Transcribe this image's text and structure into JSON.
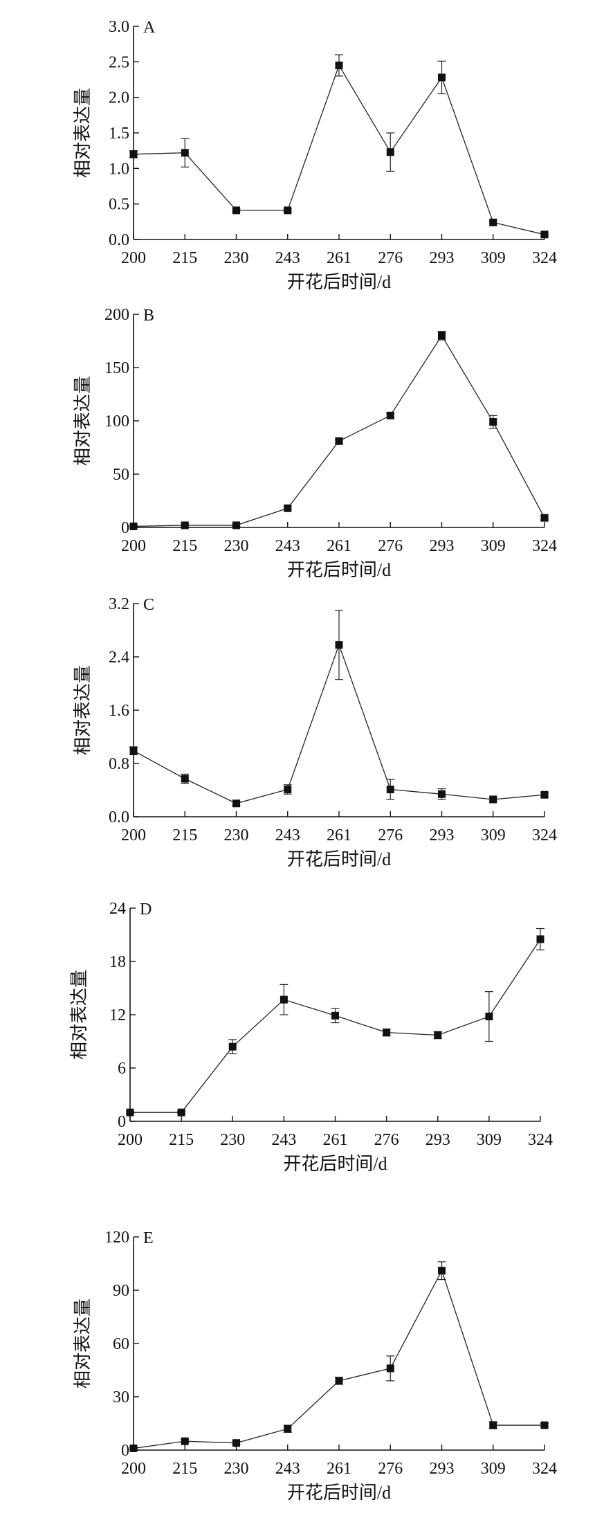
{
  "chart_data": [
    {
      "type": "line",
      "panel_label": "A",
      "xlabel": "开花后时间/d",
      "ylabel": "相对表达量",
      "categories": [
        "200",
        "215",
        "230",
        "243",
        "261",
        "276",
        "293",
        "309",
        "324"
      ],
      "ylim": [
        0,
        3.0
      ],
      "yticks": [
        "0.0",
        "0.5",
        "1.0",
        "1.5",
        "2.0",
        "2.5",
        "3.0"
      ],
      "series": [
        {
          "values": [
            1.2,
            1.22,
            0.41,
            0.41,
            2.45,
            1.23,
            2.28,
            0.24,
            0.07
          ],
          "errors": [
            0.05,
            0.2,
            0.02,
            0.02,
            0.15,
            0.27,
            0.23,
            0.02,
            0.02
          ]
        }
      ]
    },
    {
      "type": "line",
      "panel_label": "B",
      "xlabel": "开花后时间/d",
      "ylabel": "相对表达量",
      "categories": [
        "200",
        "215",
        "230",
        "243",
        "261",
        "276",
        "293",
        "309",
        "324"
      ],
      "ylim": [
        0,
        200
      ],
      "yticks": [
        "0",
        "50",
        "100",
        "150",
        "200"
      ],
      "series": [
        {
          "values": [
            1,
            2,
            2,
            18,
            81,
            105,
            180,
            99,
            9
          ],
          "errors": [
            0.5,
            1.5,
            1,
            1.5,
            2,
            2,
            4,
            6,
            2
          ]
        }
      ]
    },
    {
      "type": "line",
      "panel_label": "C",
      "xlabel": "开花后时间/d",
      "ylabel": "相对表达量",
      "categories": [
        "200",
        "215",
        "230",
        "243",
        "261",
        "276",
        "293",
        "309",
        "324"
      ],
      "ylim": [
        0,
        3.2
      ],
      "yticks": [
        "0.0",
        "0.8",
        "1.6",
        "2.4",
        "3.2"
      ],
      "series": [
        {
          "values": [
            0.99,
            0.57,
            0.2,
            0.41,
            2.58,
            0.41,
            0.34,
            0.26,
            0.33
          ],
          "errors": [
            0.06,
            0.07,
            0.03,
            0.07,
            0.52,
            0.15,
            0.08,
            0.03,
            0.03
          ]
        }
      ]
    },
    {
      "type": "line",
      "panel_label": "D",
      "xlabel": "开花后时间/d",
      "ylabel": "相对表达量",
      "categories": [
        "200",
        "215",
        "230",
        "243",
        "261",
        "276",
        "293",
        "309",
        "324"
      ],
      "ylim": [
        0,
        24
      ],
      "yticks": [
        "0",
        "6",
        "12",
        "18",
        "24"
      ],
      "series": [
        {
          "values": [
            1,
            1,
            8.4,
            13.7,
            11.9,
            10,
            9.7,
            11.8,
            20.5
          ],
          "errors": [
            0.1,
            0.1,
            0.8,
            1.7,
            0.8,
            0.4,
            0.4,
            2.8,
            1.2
          ]
        }
      ]
    },
    {
      "type": "line",
      "panel_label": "E",
      "xlabel": "开花后时间/d",
      "ylabel": "相对表达量",
      "categories": [
        "200",
        "215",
        "230",
        "243",
        "261",
        "276",
        "293",
        "309",
        "324"
      ],
      "ylim": [
        0,
        120
      ],
      "yticks": [
        "0",
        "30",
        "60",
        "90",
        "120"
      ],
      "series": [
        {
          "values": [
            1,
            5,
            4,
            12,
            39,
            46,
            101,
            14,
            14
          ],
          "errors": [
            0.5,
            1,
            1,
            2,
            2,
            7,
            5,
            2,
            1
          ]
        }
      ]
    }
  ]
}
